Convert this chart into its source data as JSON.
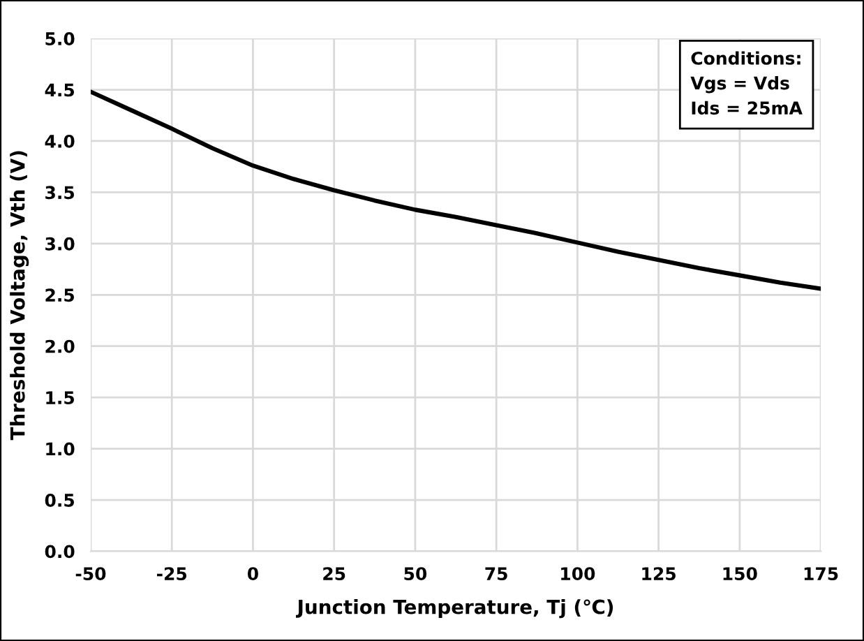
{
  "chart_data": {
    "type": "line",
    "xlabel": "Junction Temperature, Tj (℃)",
    "ylabel": "Threshold Voltage, Vth (V)",
    "x": [
      -50,
      -37.5,
      -25,
      -12.5,
      0,
      12.5,
      25,
      37.5,
      50,
      62.5,
      75,
      87.5,
      100,
      112.5,
      125,
      137.5,
      150,
      162.5,
      175
    ],
    "series": [
      {
        "color": "#000000",
        "values": [
          4.48,
          4.3,
          4.12,
          3.93,
          3.76,
          3.63,
          3.52,
          3.42,
          3.33,
          3.26,
          3.18,
          3.1,
          3.01,
          2.92,
          2.84,
          2.76,
          2.69,
          2.62,
          2.56
        ]
      }
    ],
    "xlim": [
      -50,
      175
    ],
    "xticks": [
      -50,
      -25,
      0,
      25,
      50,
      75,
      100,
      125,
      150,
      175
    ],
    "ylim": [
      0,
      5
    ],
    "yticks": [
      {
        "value": 0,
        "label": "0.0"
      },
      {
        "value": 0.5,
        "label": "0.5"
      },
      {
        "value": 1,
        "label": "1.0"
      },
      {
        "value": 1.5,
        "label": "1.5"
      },
      {
        "value": 2,
        "label": "2.0"
      },
      {
        "value": 2.5,
        "label": "2.5"
      },
      {
        "value": 3,
        "label": "3.0"
      },
      {
        "value": 3.5,
        "label": "3.5"
      },
      {
        "value": 4,
        "label": "4.0"
      },
      {
        "value": 4.5,
        "label": "4.5"
      },
      {
        "value": 5,
        "label": "5.0"
      }
    ],
    "grid": true,
    "marker": "none",
    "line_style": "solid",
    "annotations": [
      "Conditions:\nVgs = Vds\nIds = 25mA"
    ]
  }
}
